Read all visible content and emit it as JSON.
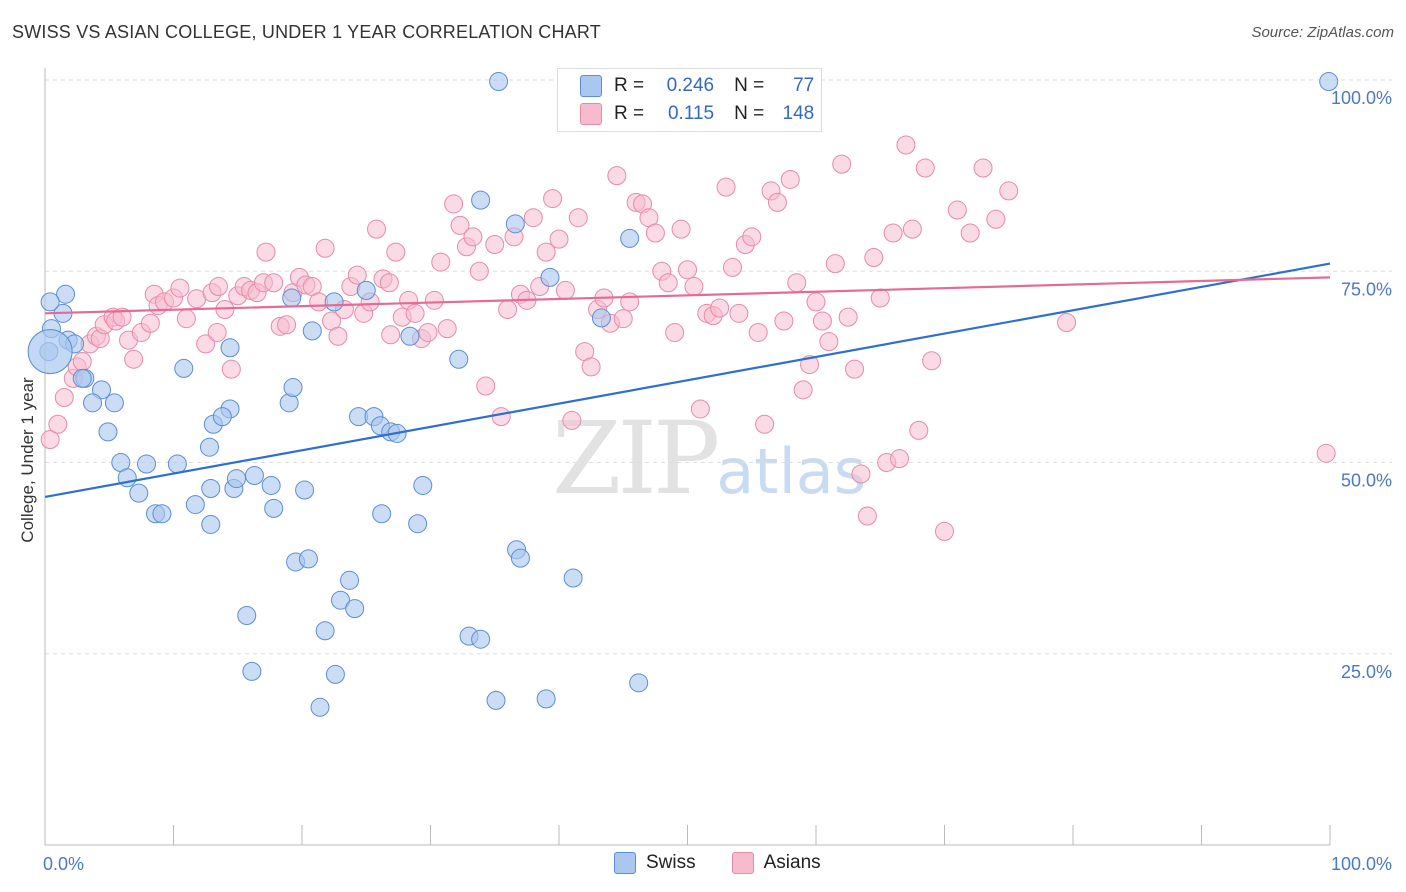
{
  "title": "SWISS VS ASIAN COLLEGE, UNDER 1 YEAR CORRELATION CHART",
  "source": "Source: ZipAtlas.com",
  "watermark": {
    "zip": "ZIP",
    "atlas": "atlas"
  },
  "legend_top": {
    "rows": [
      {
        "r_label": "R =",
        "r_value": "0.246",
        "n_label": "N =",
        "n_value": "77"
      },
      {
        "r_label": "R =",
        "r_value": "0.115",
        "n_label": "N =",
        "n_value": "148"
      }
    ]
  },
  "legend_bottom": {
    "swiss": "Swiss",
    "asians": "Asians"
  },
  "colors": {
    "swiss_fill": "#a9c7ef",
    "swiss_stroke": "#5b8ed6",
    "swiss_line": "#2e6fcf",
    "asian_fill": "#f6bccd",
    "asian_stroke": "#e98aa8",
    "asian_line": "#e56b96",
    "grid": "#dddddd",
    "tick_text": "#4a78c8"
  },
  "chart_data": {
    "type": "scatter",
    "title": "SWISS VS ASIAN COLLEGE, UNDER 1 YEAR CORRELATION CHART",
    "xlabel": "",
    "ylabel": "College, Under 1 year",
    "xlim": [
      0,
      100
    ],
    "ylim": [
      0,
      100
    ],
    "x_tick_labels": [
      "0.0%",
      "100.0%"
    ],
    "y_tick_labels": [
      "25.0%",
      "50.0%",
      "75.0%",
      "100.0%"
    ],
    "y_ticks": [
      25,
      50,
      75,
      100
    ],
    "grid": true,
    "legend_position": "bottom",
    "series": [
      {
        "name": "Swiss",
        "trend": {
          "x": [
            0,
            100
          ],
          "y": [
            45.5,
            76.0
          ]
        },
        "points": [
          [
            1.6,
            72
          ],
          [
            1.4,
            69.5
          ],
          [
            1.8,
            66
          ],
          [
            2.3,
            65.5
          ],
          [
            3.1,
            61
          ],
          [
            2.9,
            61
          ],
          [
            4.4,
            59.5
          ],
          [
            3.7,
            57.8
          ],
          [
            5.4,
            57.8
          ],
          [
            4.9,
            54
          ],
          [
            5.9,
            50
          ],
          [
            7.9,
            49.8
          ],
          [
            10.3,
            49.8
          ],
          [
            6.4,
            48
          ],
          [
            7.3,
            46
          ],
          [
            8.6,
            43.3
          ],
          [
            9.1,
            43.3
          ],
          [
            11.7,
            44.5
          ],
          [
            10.8,
            62.3
          ],
          [
            14.4,
            65
          ],
          [
            14.7,
            46.6
          ],
          [
            12.8,
            52
          ],
          [
            13.1,
            55
          ],
          [
            14.4,
            57
          ],
          [
            13.8,
            56
          ],
          [
            14.9,
            47.9
          ],
          [
            12.9,
            46.6
          ],
          [
            16.3,
            48.3
          ],
          [
            15.7,
            30
          ],
          [
            12.9,
            41.9
          ],
          [
            17.8,
            44
          ],
          [
            16.1,
            22.7
          ],
          [
            17.6,
            47
          ],
          [
            19.0,
            57.8
          ],
          [
            19.3,
            59.8
          ],
          [
            20.2,
            46.4
          ],
          [
            19.5,
            37
          ],
          [
            20.8,
            67.2
          ],
          [
            20.5,
            37.4
          ],
          [
            21.4,
            18
          ],
          [
            21.8,
            28
          ],
          [
            22.6,
            22.3
          ],
          [
            23.0,
            32
          ],
          [
            24.1,
            30.9
          ],
          [
            23.7,
            34.6
          ],
          [
            24.4,
            56
          ],
          [
            25.6,
            56
          ],
          [
            26.1,
            54.8
          ],
          [
            26.9,
            54
          ],
          [
            27.4,
            53.8
          ],
          [
            26.2,
            43.3
          ],
          [
            28.4,
            66.5
          ],
          [
            29.0,
            42
          ],
          [
            29.4,
            47
          ],
          [
            32.2,
            63.5
          ],
          [
            33.0,
            27.3
          ],
          [
            33.9,
            26.9
          ],
          [
            35.1,
            18.9
          ],
          [
            36.6,
            81.2
          ],
          [
            33.9,
            84.3
          ],
          [
            36.7,
            38.6
          ],
          [
            37.0,
            37.5
          ],
          [
            39.0,
            19.1
          ],
          [
            39.3,
            74.2
          ],
          [
            41.1,
            34.9
          ],
          [
            43.3,
            68.9
          ],
          [
            45.5,
            79.3
          ],
          [
            46.2,
            21.2
          ],
          [
            35.3,
            99.8
          ],
          [
            33.5,
            103.8
          ],
          [
            99.9,
            99.8
          ],
          [
            22.5,
            71.0
          ],
          [
            19.2,
            71.5
          ],
          [
            25.0,
            72.5
          ],
          [
            0.4,
            71
          ],
          [
            0.5,
            67.5
          ],
          [
            0.3,
            64.5
          ]
        ]
      },
      {
        "name": "Asians",
        "trend": {
          "x": [
            0,
            100
          ],
          "y": [
            69.5,
            74.2
          ]
        },
        "points": [
          [
            0.4,
            53
          ],
          [
            1.0,
            55
          ],
          [
            1.5,
            58.5
          ],
          [
            2.2,
            61
          ],
          [
            2.5,
            62.5
          ],
          [
            2.9,
            63.2
          ],
          [
            3.5,
            65.5
          ],
          [
            4.0,
            66.5
          ],
          [
            4.3,
            66.2
          ],
          [
            4.6,
            68
          ],
          [
            5.3,
            69
          ],
          [
            5.5,
            68.5
          ],
          [
            6.0,
            69
          ],
          [
            6.5,
            66
          ],
          [
            7.5,
            67
          ],
          [
            8.5,
            72
          ],
          [
            8.8,
            70.5
          ],
          [
            9.3,
            71
          ],
          [
            10.0,
            71.5
          ],
          [
            10.5,
            72.8
          ],
          [
            11.0,
            68.8
          ],
          [
            11.8,
            71.4
          ],
          [
            12.5,
            65.5
          ],
          [
            13.0,
            72.2
          ],
          [
            13.5,
            73
          ],
          [
            14.0,
            70
          ],
          [
            14.5,
            62.2
          ],
          [
            15.0,
            71.8
          ],
          [
            15.5,
            73
          ],
          [
            16.0,
            72.5
          ],
          [
            16.5,
            72.2
          ],
          [
            17.0,
            73.5
          ],
          [
            17.2,
            77.5
          ],
          [
            17.8,
            73.5
          ],
          [
            18.3,
            67.8
          ],
          [
            18.8,
            68
          ],
          [
            19.3,
            72.2
          ],
          [
            19.8,
            74.2
          ],
          [
            20.3,
            73.2
          ],
          [
            20.8,
            73
          ],
          [
            21.3,
            71
          ],
          [
            21.8,
            78
          ],
          [
            22.3,
            68.5
          ],
          [
            22.8,
            66.5
          ],
          [
            23.3,
            70
          ],
          [
            23.8,
            73
          ],
          [
            24.3,
            74.5
          ],
          [
            24.8,
            69.5
          ],
          [
            25.3,
            71
          ],
          [
            25.8,
            80.5
          ],
          [
            26.3,
            74
          ],
          [
            26.8,
            73.5
          ],
          [
            27.3,
            77.5
          ],
          [
            27.8,
            69
          ],
          [
            28.3,
            71.2
          ],
          [
            28.8,
            69.5
          ],
          [
            29.3,
            66.2
          ],
          [
            29.8,
            67
          ],
          [
            30.3,
            71.2
          ],
          [
            30.8,
            76.2
          ],
          [
            31.3,
            67.5
          ],
          [
            31.8,
            83.8
          ],
          [
            32.3,
            81
          ],
          [
            32.8,
            78.2
          ],
          [
            33.3,
            79.5
          ],
          [
            33.8,
            75
          ],
          [
            34.3,
            60
          ],
          [
            35.0,
            78.5
          ],
          [
            35.5,
            56
          ],
          [
            36.0,
            70
          ],
          [
            36.5,
            79.5
          ],
          [
            37.0,
            72
          ],
          [
            37.5,
            71.2
          ],
          [
            38.0,
            82
          ],
          [
            38.5,
            73
          ],
          [
            39.0,
            77.5
          ],
          [
            39.5,
            84.5
          ],
          [
            40.0,
            79.2
          ],
          [
            40.5,
            72.5
          ],
          [
            41.0,
            55.5
          ],
          [
            41.5,
            82
          ],
          [
            42.0,
            64.5
          ],
          [
            42.5,
            62.5
          ],
          [
            43.0,
            70
          ],
          [
            43.5,
            71.5
          ],
          [
            44.0,
            68.2
          ],
          [
            44.5,
            87.5
          ],
          [
            45.0,
            68.8
          ],
          [
            45.5,
            71
          ],
          [
            46.0,
            84
          ],
          [
            46.5,
            83.8
          ],
          [
            47.0,
            82
          ],
          [
            47.5,
            80
          ],
          [
            48.0,
            75
          ],
          [
            48.5,
            73.5
          ],
          [
            49.0,
            67
          ],
          [
            49.5,
            80.5
          ],
          [
            50.0,
            75.2
          ],
          [
            50.5,
            73
          ],
          [
            51.0,
            57
          ],
          [
            51.5,
            69.5
          ],
          [
            52.0,
            69.2
          ],
          [
            52.5,
            70.2
          ],
          [
            53.0,
            86
          ],
          [
            53.5,
            75.5
          ],
          [
            54.0,
            69.5
          ],
          [
            54.5,
            78.5
          ],
          [
            55.0,
            79.5
          ],
          [
            55.5,
            67
          ],
          [
            56.0,
            55
          ],
          [
            56.5,
            85.5
          ],
          [
            57.0,
            84
          ],
          [
            57.5,
            68.5
          ],
          [
            58.0,
            87
          ],
          [
            58.5,
            73.5
          ],
          [
            59.0,
            59.5
          ],
          [
            59.5,
            62.8
          ],
          [
            60.0,
            71
          ],
          [
            60.5,
            68.5
          ],
          [
            61.0,
            65.8
          ],
          [
            61.5,
            76
          ],
          [
            62.0,
            89
          ],
          [
            62.5,
            69
          ],
          [
            63.0,
            62.2
          ],
          [
            63.5,
            48.5
          ],
          [
            64.0,
            43
          ],
          [
            64.5,
            76.8
          ],
          [
            65.0,
            71.5
          ],
          [
            65.5,
            50
          ],
          [
            66.0,
            80
          ],
          [
            66.5,
            50.5
          ],
          [
            67.0,
            91.5
          ],
          [
            67.5,
            80.5
          ],
          [
            68.0,
            54.2
          ],
          [
            68.5,
            88.5
          ],
          [
            69.0,
            63.3
          ],
          [
            70.0,
            41
          ],
          [
            71.0,
            83
          ],
          [
            72.0,
            80
          ],
          [
            73.0,
            88.5
          ],
          [
            74.0,
            81.8
          ],
          [
            75.0,
            85.5
          ],
          [
            79.5,
            68.3
          ],
          [
            99.7,
            51.2
          ],
          [
            13.4,
            67.0
          ],
          [
            8.2,
            68.2
          ],
          [
            26.9,
            66.7
          ],
          [
            6.9,
            63.5
          ]
        ]
      }
    ]
  },
  "y_axis_label": "College, Under 1 year"
}
